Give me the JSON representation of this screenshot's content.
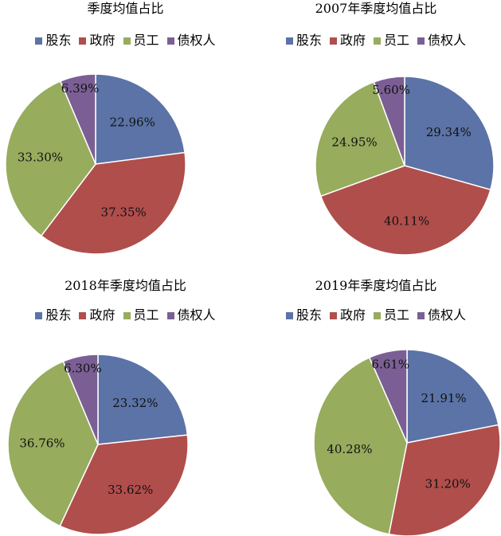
{
  "chart_data": [
    {
      "type": "pie",
      "title": "季度均值占比",
      "categories": [
        "股东",
        "政府",
        "员工",
        "债权人"
      ],
      "values": [
        22.96,
        37.35,
        33.3,
        6.39
      ],
      "labels": [
        "22.96%",
        "37.35%",
        "33.30%",
        "6.39%"
      ],
      "legend": "top"
    },
    {
      "type": "pie",
      "title": "2007年季度均值占比",
      "categories": [
        "股东",
        "政府",
        "员工",
        "债权人"
      ],
      "values": [
        29.34,
        40.11,
        24.95,
        5.6
      ],
      "labels": [
        "29.34%",
        "40.11%",
        "24.95%",
        "5.60%"
      ],
      "legend": "top"
    },
    {
      "type": "pie",
      "title": "2018年季度均值占比",
      "categories": [
        "股东",
        "政府",
        "员工",
        "债权人"
      ],
      "values": [
        23.32,
        33.62,
        36.76,
        6.3
      ],
      "labels": [
        "23.32%",
        "33.62%",
        "36.76%",
        "6.30%"
      ],
      "legend": "top"
    },
    {
      "type": "pie",
      "title": "2019年季度均值占比",
      "categories": [
        "股东",
        "政府",
        "员工",
        "债权人"
      ],
      "values": [
        21.91,
        31.2,
        40.28,
        6.61
      ],
      "labels": [
        "21.91%",
        "31.20%",
        "40.28%",
        "6.61%"
      ],
      "legend": "top"
    }
  ],
  "colors": [
    "#5b73a6",
    "#b04e4c",
    "#97ac5d",
    "#7b5f94"
  ]
}
